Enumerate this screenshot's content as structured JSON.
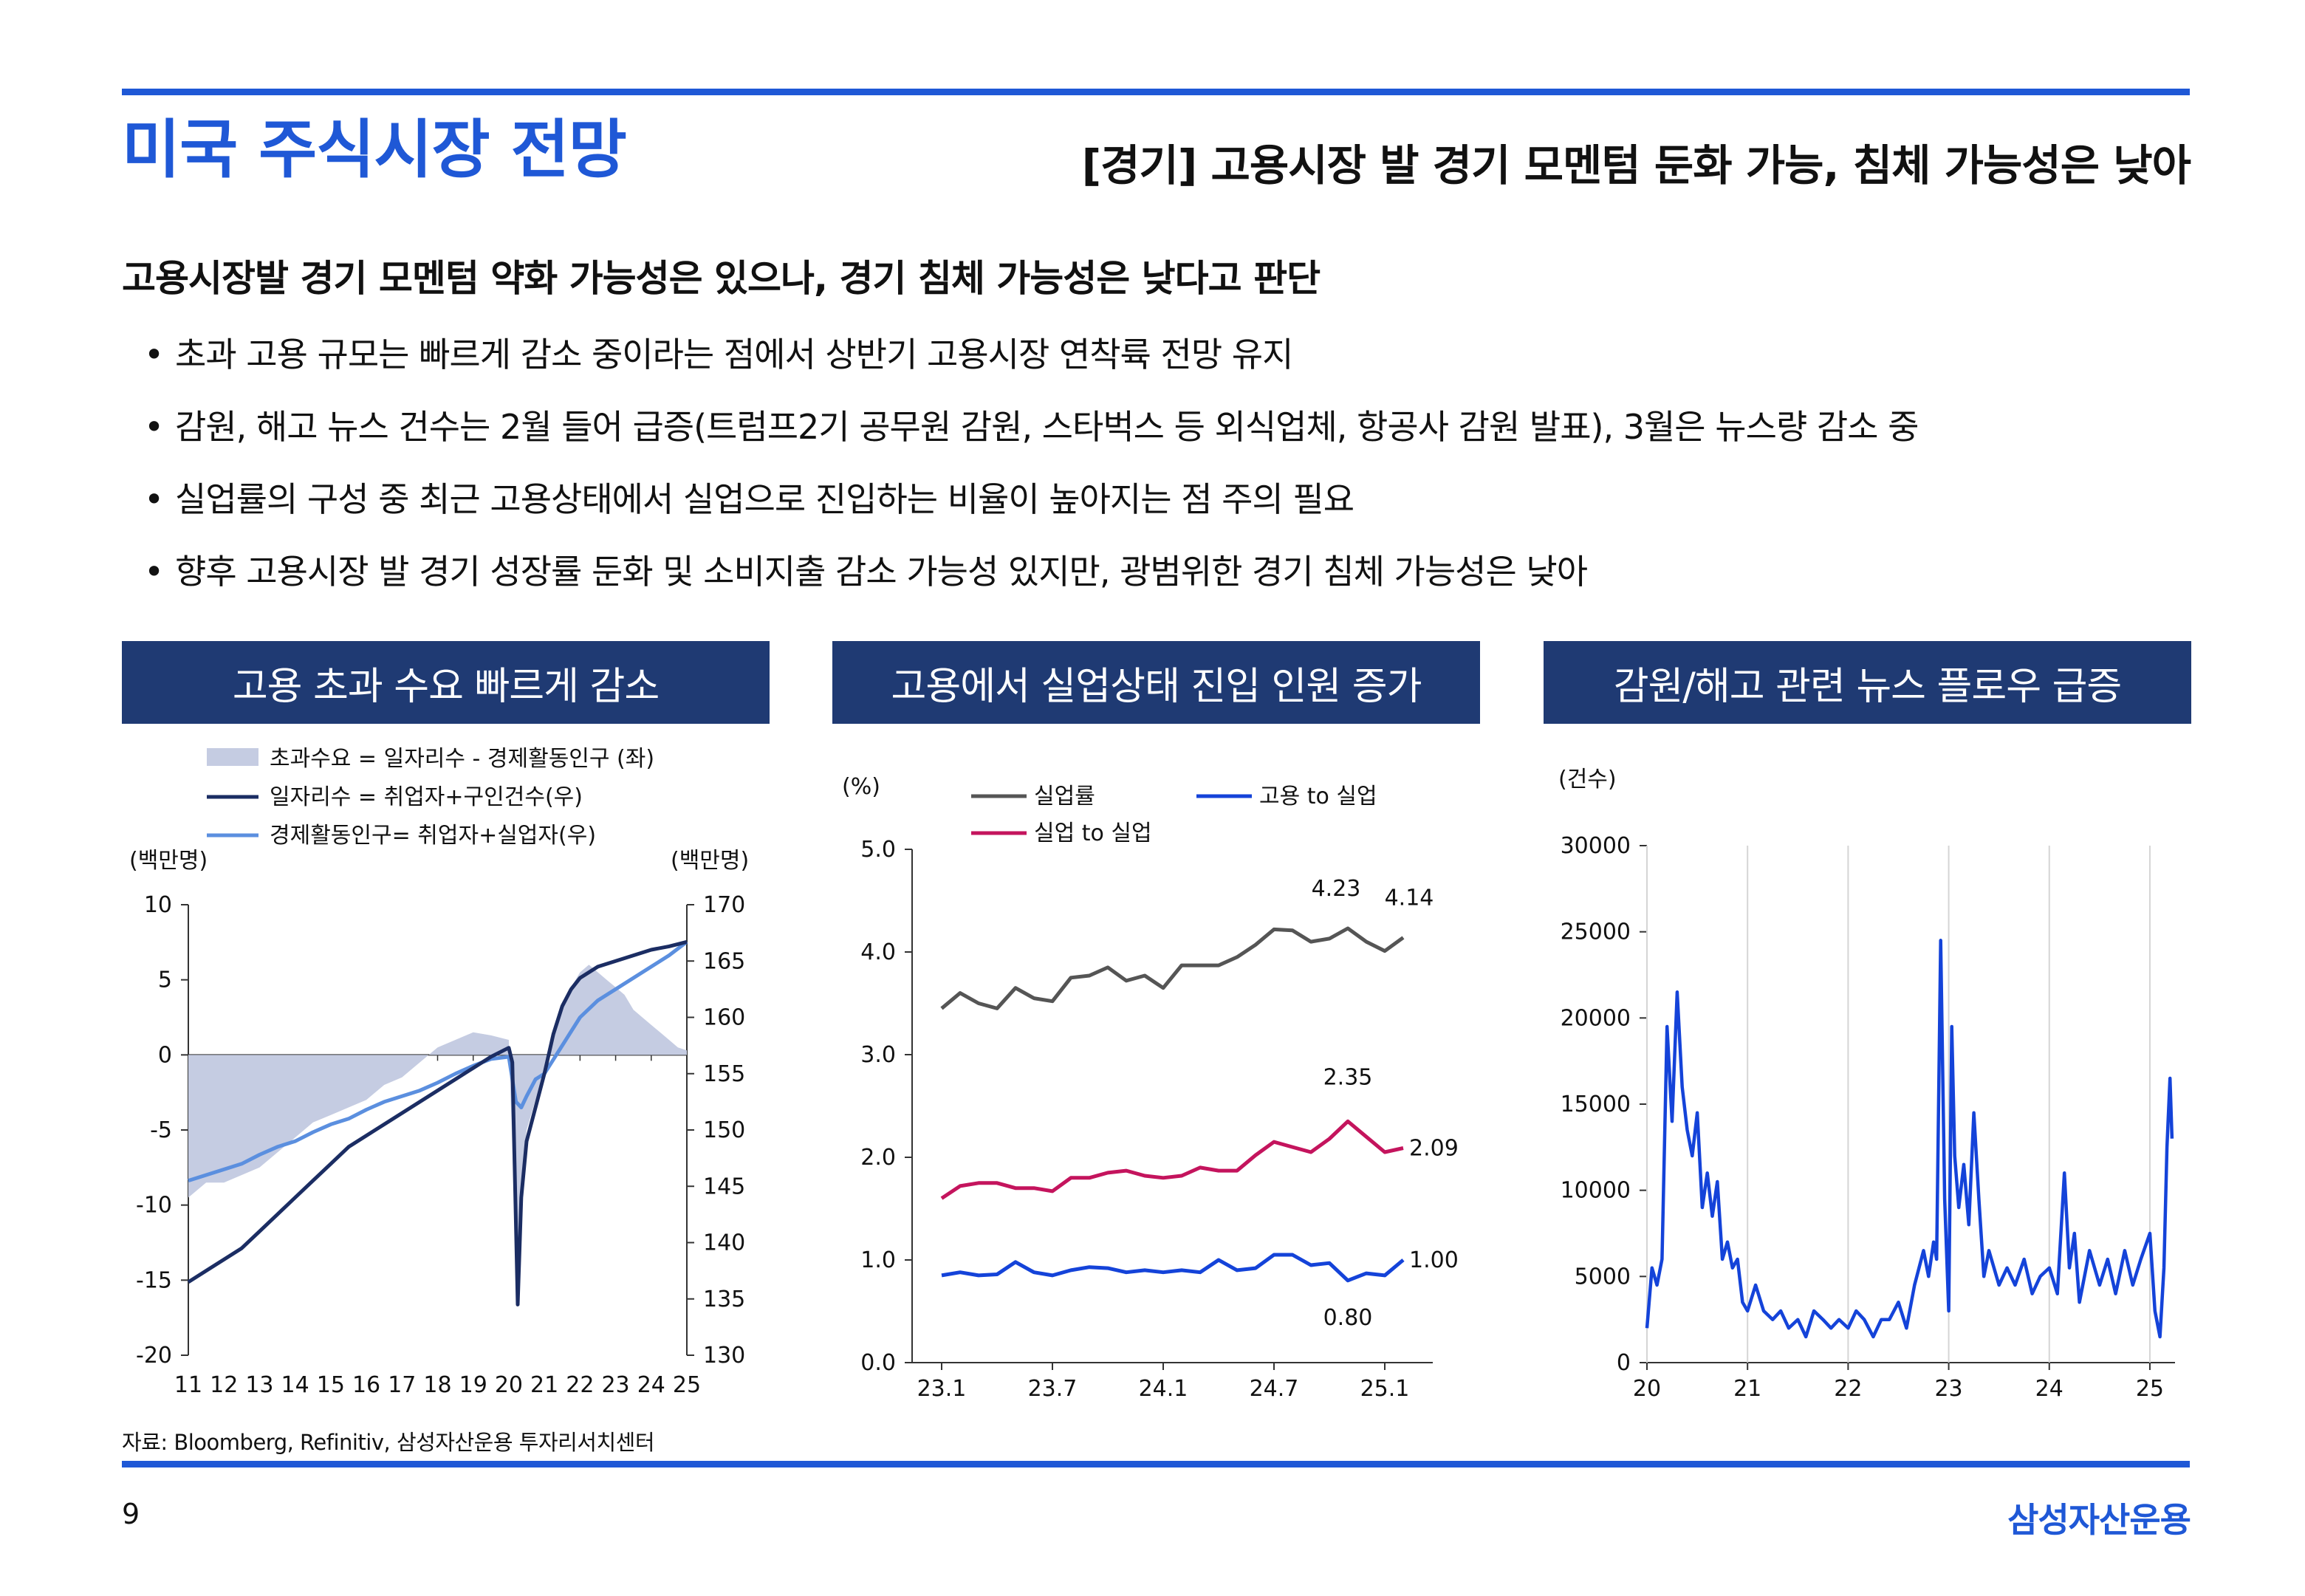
{
  "colors": {
    "accent": "#1f58d6",
    "header_bg": "#1f3a73",
    "navy": "#1b2d63",
    "light_blue": "#5b8fdf",
    "shade": "#c5cce2",
    "gray_line": "#555555",
    "magenta": "#c4145d",
    "blue": "#1443d9"
  },
  "header": {
    "title": "미국 주식시장 전망",
    "subtitle": "[경기] 고용시장 발 경기 모멘텀 둔화 가능, 침체 가능성은 낮아"
  },
  "lead": "고용시장발 경기 모멘텀 약화 가능성은 있으나, 경기 침체 가능성은 낮다고 판단",
  "bullets": [
    "초과 고용 규모는 빠르게 감소 중이라는 점에서 상반기 고용시장 연착륙 전망 유지",
    "감원, 해고 뉴스 건수는 2월 들어 급증(트럼프2기 공무원 감원, 스타벅스 등 외식업체, 항공사 감원 발표), 3월은 뉴스량 감소 중",
    "실업률의 구성 중 최근 고용상태에서 실업으로 진입하는 비율이 높아지는 점 주의 필요",
    "향후 고용시장 발 경기 성장률 둔화 및 소비지출 감소 가능성 있지만, 광범위한 경기 침체 가능성은 낮아"
  ],
  "bullet_marker": "•",
  "panels": [
    "고용 초과 수요 빠르게 감소",
    "고용에서 실업상태 진입 인원 증가",
    "감원/해고 관련 뉴스 플로우 급증"
  ],
  "chart_data": [
    {
      "type": "area",
      "title": "고용 초과 수요 빠르게 감소",
      "ylabel_left": "(백만명)",
      "ylabel_right": "(백만명)",
      "ylim_left": [
        -20,
        10
      ],
      "ylim_right": [
        130,
        170
      ],
      "yticks_left": [
        "10",
        "5",
        "0",
        "-5",
        "-10",
        "-15",
        "-20"
      ],
      "yticks_right": [
        "170",
        "165",
        "160",
        "155",
        "150",
        "145",
        "140",
        "135",
        "130"
      ],
      "xticks": [
        "11",
        "12",
        "13",
        "14",
        "15",
        "16",
        "17",
        "18",
        "19",
        "20",
        "21",
        "22",
        "23",
        "24",
        "25"
      ],
      "x_range": [
        2011,
        2025
      ],
      "series": [
        {
          "name": "초과수요 = 일자리수 - 경제활동인구 (좌)",
          "kind": "area",
          "axis": "left",
          "x": [
            2011,
            2011.5,
            2012,
            2012.5,
            2013,
            2013.5,
            2014,
            2014.5,
            2015,
            2015.5,
            2016,
            2016.5,
            2017,
            2017.5,
            2018,
            2018.5,
            2019,
            2019.5,
            2020.0,
            2020.15,
            2020.25,
            2020.35,
            2020.5,
            2020.75,
            2021,
            2021.25,
            2021.5,
            2021.75,
            2022,
            2022.25,
            2022.5,
            2022.75,
            2023,
            2023.25,
            2023.5,
            2023.75,
            2024,
            2024.25,
            2024.5,
            2024.75,
            2025
          ],
          "values": [
            -9.5,
            -8.5,
            -8.5,
            -8,
            -7.5,
            -6.5,
            -5.5,
            -4.5,
            -4,
            -3.5,
            -3,
            -2,
            -1.5,
            -0.5,
            0.5,
            1,
            1.5,
            1.3,
            1.0,
            -10,
            -16,
            -9,
            -5,
            -3,
            -1,
            1,
            3,
            4.5,
            5.5,
            6,
            5.5,
            5,
            4.5,
            4,
            3,
            2.5,
            2,
            1.5,
            1,
            0.5,
            0.3
          ]
        },
        {
          "name": "일자리수 = 취업자+구인건수(우)",
          "kind": "line",
          "axis": "right",
          "x": [
            2011,
            2011.5,
            2012,
            2012.5,
            2013,
            2013.5,
            2014,
            2014.5,
            2015,
            2015.5,
            2016,
            2016.5,
            2017,
            2017.5,
            2018,
            2018.5,
            2019,
            2019.5,
            2020.0,
            2020.1,
            2020.25,
            2020.35,
            2020.5,
            2020.75,
            2021,
            2021.25,
            2021.5,
            2021.75,
            2022,
            2022.5,
            2023,
            2023.5,
            2024,
            2024.5,
            2025
          ],
          "values": [
            136.5,
            137.5,
            138.5,
            139.5,
            141,
            142.5,
            144,
            145.5,
            147,
            148.5,
            149.5,
            150.5,
            151.5,
            152.5,
            153.5,
            154.5,
            155.5,
            156.5,
            157.3,
            156,
            134.5,
            144,
            149,
            152,
            155,
            158.5,
            161,
            162.5,
            163.5,
            164.5,
            165,
            165.5,
            166,
            166.3,
            166.7
          ]
        },
        {
          "name": "경제활동인구= 취업자+실업자(우)",
          "kind": "line",
          "axis": "right",
          "x": [
            2011,
            2011.5,
            2012,
            2012.5,
            2013,
            2013.5,
            2014,
            2014.5,
            2015,
            2015.5,
            2016,
            2016.5,
            2017,
            2017.5,
            2018,
            2018.5,
            2019,
            2019.5,
            2020.0,
            2020.2,
            2020.35,
            2020.5,
            2020.75,
            2021,
            2021.5,
            2022,
            2022.5,
            2023,
            2023.5,
            2024,
            2024.5,
            2025
          ],
          "values": [
            145.5,
            146,
            146.5,
            147,
            147.8,
            148.5,
            149,
            149.8,
            150.5,
            151,
            151.8,
            152.5,
            153,
            153.5,
            154.2,
            155,
            155.7,
            156.3,
            156.5,
            152.5,
            152,
            153,
            154.5,
            155,
            157.5,
            160,
            161.5,
            162.5,
            163.5,
            164.5,
            165.5,
            166.7
          ]
        }
      ]
    },
    {
      "type": "line",
      "title": "고용에서 실업상태 진입 인원 증가",
      "ylabel": "(%)",
      "ylim": [
        0,
        5
      ],
      "yticks": [
        "5.0",
        "4.0",
        "3.0",
        "2.0",
        "1.0",
        "0.0"
      ],
      "xticks": [
        "23.1",
        "23.7",
        "24.1",
        "24.7",
        "25.1"
      ],
      "categories": [
        "23.1",
        "23.2",
        "23.3",
        "23.4",
        "23.5",
        "23.6",
        "23.7",
        "23.8",
        "23.9",
        "23.10",
        "23.11",
        "23.12",
        "24.1",
        "24.2",
        "24.3",
        "24.4",
        "24.5",
        "24.6",
        "24.7",
        "24.8",
        "24.9",
        "24.10",
        "24.11",
        "24.12",
        "25.1",
        "25.2"
      ],
      "series": [
        {
          "name": "실업률",
          "values": [
            3.45,
            3.6,
            3.5,
            3.45,
            3.65,
            3.55,
            3.52,
            3.75,
            3.77,
            3.85,
            3.72,
            3.77,
            3.65,
            3.87,
            3.87,
            3.87,
            3.95,
            4.07,
            4.22,
            4.21,
            4.1,
            4.13,
            4.23,
            4.1,
            4.01,
            4.14
          ]
        },
        {
          "name": "고용 to 실업",
          "values": [
            0.85,
            0.88,
            0.85,
            0.86,
            0.98,
            0.88,
            0.85,
            0.9,
            0.93,
            0.92,
            0.88,
            0.9,
            0.88,
            0.9,
            0.88,
            1.0,
            0.9,
            0.92,
            1.05,
            1.05,
            0.95,
            0.97,
            0.8,
            0.87,
            0.85,
            1.0
          ]
        },
        {
          "name": "실업 to 실업",
          "values": [
            1.6,
            1.72,
            1.75,
            1.75,
            1.7,
            1.7,
            1.67,
            1.8,
            1.8,
            1.85,
            1.87,
            1.82,
            1.8,
            1.82,
            1.9,
            1.87,
            1.87,
            2.02,
            2.15,
            2.1,
            2.05,
            2.18,
            2.35,
            2.2,
            2.05,
            2.09
          ]
        }
      ],
      "annotations": [
        "4.23",
        "4.14",
        "2.35",
        "2.09",
        "1.00",
        "0.80"
      ]
    },
    {
      "type": "line",
      "title": "감원/해고 관련 뉴스 플로우 급증",
      "ylabel": "(건수)",
      "ylim": [
        0,
        30000
      ],
      "yticks": [
        "30000",
        "25000",
        "20000",
        "15000",
        "10000",
        "5000",
        "0"
      ],
      "xticks": [
        "20",
        "21",
        "22",
        "23",
        "24",
        "25"
      ],
      "x_range": [
        2020,
        2025.25
      ],
      "series": [
        {
          "name": "감원/해고 뉴스 건수",
          "x": [
            2020.0,
            2020.05,
            2020.1,
            2020.15,
            2020.2,
            2020.25,
            2020.3,
            2020.35,
            2020.4,
            2020.45,
            2020.5,
            2020.55,
            2020.6,
            2020.65,
            2020.7,
            2020.75,
            2020.8,
            2020.85,
            2020.9,
            2020.95,
            2021.0,
            2021.08,
            2021.16,
            2021.25,
            2021.33,
            2021.41,
            2021.5,
            2021.58,
            2021.66,
            2021.75,
            2021.83,
            2021.91,
            2022.0,
            2022.08,
            2022.16,
            2022.25,
            2022.33,
            2022.41,
            2022.5,
            2022.58,
            2022.66,
            2022.75,
            2022.8,
            2022.85,
            2022.88,
            2022.92,
            2022.96,
            2023.0,
            2023.03,
            2023.06,
            2023.1,
            2023.15,
            2023.2,
            2023.25,
            2023.3,
            2023.35,
            2023.4,
            2023.5,
            2023.58,
            2023.66,
            2023.75,
            2023.83,
            2023.91,
            2024.0,
            2024.08,
            2024.15,
            2024.2,
            2024.25,
            2024.3,
            2024.35,
            2024.4,
            2024.5,
            2024.58,
            2024.66,
            2024.75,
            2024.83,
            2024.91,
            2025.0,
            2025.05,
            2025.1,
            2025.14,
            2025.17,
            2025.2,
            2025.22
          ],
          "values": [
            2000,
            5500,
            4500,
            6000,
            19500,
            14000,
            21500,
            16000,
            13500,
            12000,
            14500,
            9000,
            11000,
            8500,
            10500,
            6000,
            7000,
            5500,
            6000,
            3500,
            3000,
            4500,
            3000,
            2500,
            3000,
            2000,
            2500,
            1500,
            3000,
            2500,
            2000,
            2500,
            2000,
            3000,
            2500,
            1500,
            2500,
            2500,
            3500,
            2000,
            4500,
            6500,
            5000,
            7000,
            6000,
            24500,
            9500,
            3000,
            19500,
            12000,
            9000,
            11500,
            8000,
            14500,
            9500,
            5000,
            6500,
            4500,
            5500,
            4500,
            6000,
            4000,
            5000,
            5500,
            4000,
            11000,
            5500,
            7500,
            3500,
            5000,
            6500,
            4500,
            6000,
            4000,
            6500,
            4500,
            6000,
            7500,
            3000,
            1500,
            5500,
            12500,
            16500,
            13000
          ]
        }
      ]
    }
  ],
  "source": "자료: Bloomberg, Refinitiv, 삼성자산운용 투자리서치센터",
  "page_number": "9",
  "brand": "삼성자산운용"
}
